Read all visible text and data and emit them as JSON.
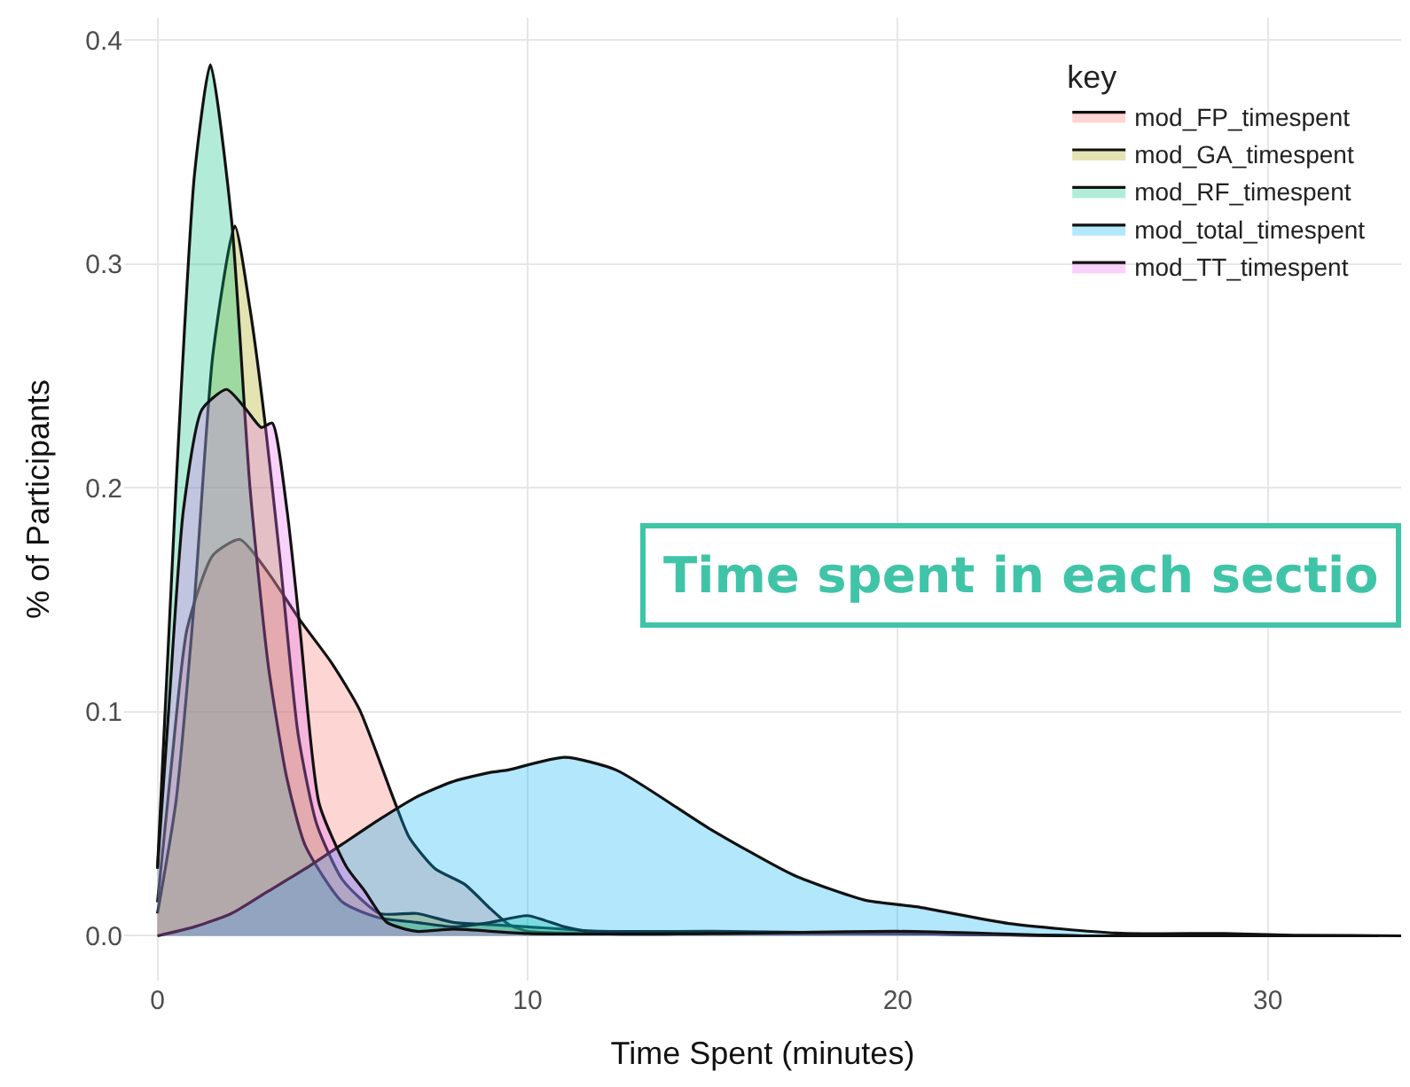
{
  "chart_data": {
    "type": "area",
    "xlabel": "Time Spent (minutes)",
    "ylabel": "% of Participants",
    "legend_title": "key",
    "legend": "top right",
    "grid": true,
    "xlim": [
      -0.9,
      33.6
    ],
    "xticks": [
      0,
      10,
      20,
      30
    ],
    "ylim": [
      -0.02,
      0.41
    ],
    "yticks": [
      {
        "value": 0,
        "label": "0.0"
      },
      0.1,
      0.2,
      0.3,
      0.4
    ],
    "annotations": [
      "Time spent in each sectio"
    ],
    "series": [
      {
        "name": "mod_FP_timespent",
        "color": "#f8766d",
        "x": [
          0,
          0.4,
          0.8,
          1.5,
          2.23,
          3,
          3.85,
          4.7,
          5.46,
          6.36,
          6.8,
          7.5,
          8.3,
          9,
          9.5,
          10,
          12,
          15,
          20,
          25,
          33
        ],
        "values": [
          0.015,
          0.08,
          0.137,
          0.17,
          0.177,
          0.162,
          0.141,
          0.122,
          0.101,
          0.062,
          0.044,
          0.03,
          0.023,
          0.012,
          0.005,
          0.002,
          0.001,
          0.001,
          0.001,
          0,
          0
        ]
      },
      {
        "name": "mod_GA_timespent",
        "color": "#a3a500",
        "x": [
          0,
          0.5,
          1.0,
          1.5,
          2.09,
          2.5,
          2.9,
          3.3,
          3.8,
          4.3,
          5,
          6,
          7,
          8,
          9,
          10,
          12,
          15,
          20,
          25,
          33
        ],
        "values": [
          0.01,
          0.06,
          0.15,
          0.26,
          0.317,
          0.28,
          0.23,
          0.17,
          0.09,
          0.05,
          0.025,
          0.01,
          0.01,
          0.006,
          0.005,
          0.004,
          0.002,
          0.002,
          0.001,
          0,
          0
        ]
      },
      {
        "name": "mod_RF_timespent",
        "color": "#00bf7d",
        "x": [
          0,
          0.5,
          1.0,
          1.43,
          2.0,
          2.5,
          3.0,
          3.5,
          4,
          5,
          6,
          7,
          8,
          9,
          10,
          11,
          12,
          15,
          20,
          25,
          33
        ],
        "values": [
          0.03,
          0.2,
          0.34,
          0.389,
          0.32,
          0.2,
          0.12,
          0.07,
          0.04,
          0.015,
          0.008,
          0.006,
          0.004,
          0.006,
          0.009,
          0.004,
          0.001,
          0.001,
          0.001,
          0,
          0
        ]
      },
      {
        "name": "mod_total_timespent",
        "color": "#00b0f6",
        "x": [
          0,
          1,
          2,
          3,
          4,
          5,
          6,
          7,
          8,
          9,
          9.45,
          11,
          12.4,
          14.9,
          17.2,
          19.1,
          20.5,
          23,
          25.9,
          28.8,
          30.7,
          33.6
        ],
        "values": [
          0,
          0.004,
          0.01,
          0.02,
          0.03,
          0.041,
          0.052,
          0.062,
          0.069,
          0.073,
          0.074,
          0.0797,
          0.074,
          0.048,
          0.027,
          0.016,
          0.013,
          0.0055,
          0.0012,
          0.001,
          0.0003,
          0
        ]
      },
      {
        "name": "mod_TT_timespent",
        "color": "#e76bf3",
        "x": [
          0,
          0.3,
          0.7,
          1.2,
          1.87,
          2.4,
          2.81,
          3.1,
          3.5,
          3.85,
          4.37,
          5.1,
          5.6,
          6.2,
          7,
          8,
          10,
          15,
          20,
          25,
          33
        ],
        "values": [
          0.03,
          0.1,
          0.19,
          0.235,
          0.244,
          0.235,
          0.227,
          0.229,
          0.19,
          0.137,
          0.059,
          0.031,
          0.02,
          0.006,
          0.002,
          0.003,
          0.001,
          0.001,
          0.002,
          0,
          0
        ]
      }
    ]
  }
}
